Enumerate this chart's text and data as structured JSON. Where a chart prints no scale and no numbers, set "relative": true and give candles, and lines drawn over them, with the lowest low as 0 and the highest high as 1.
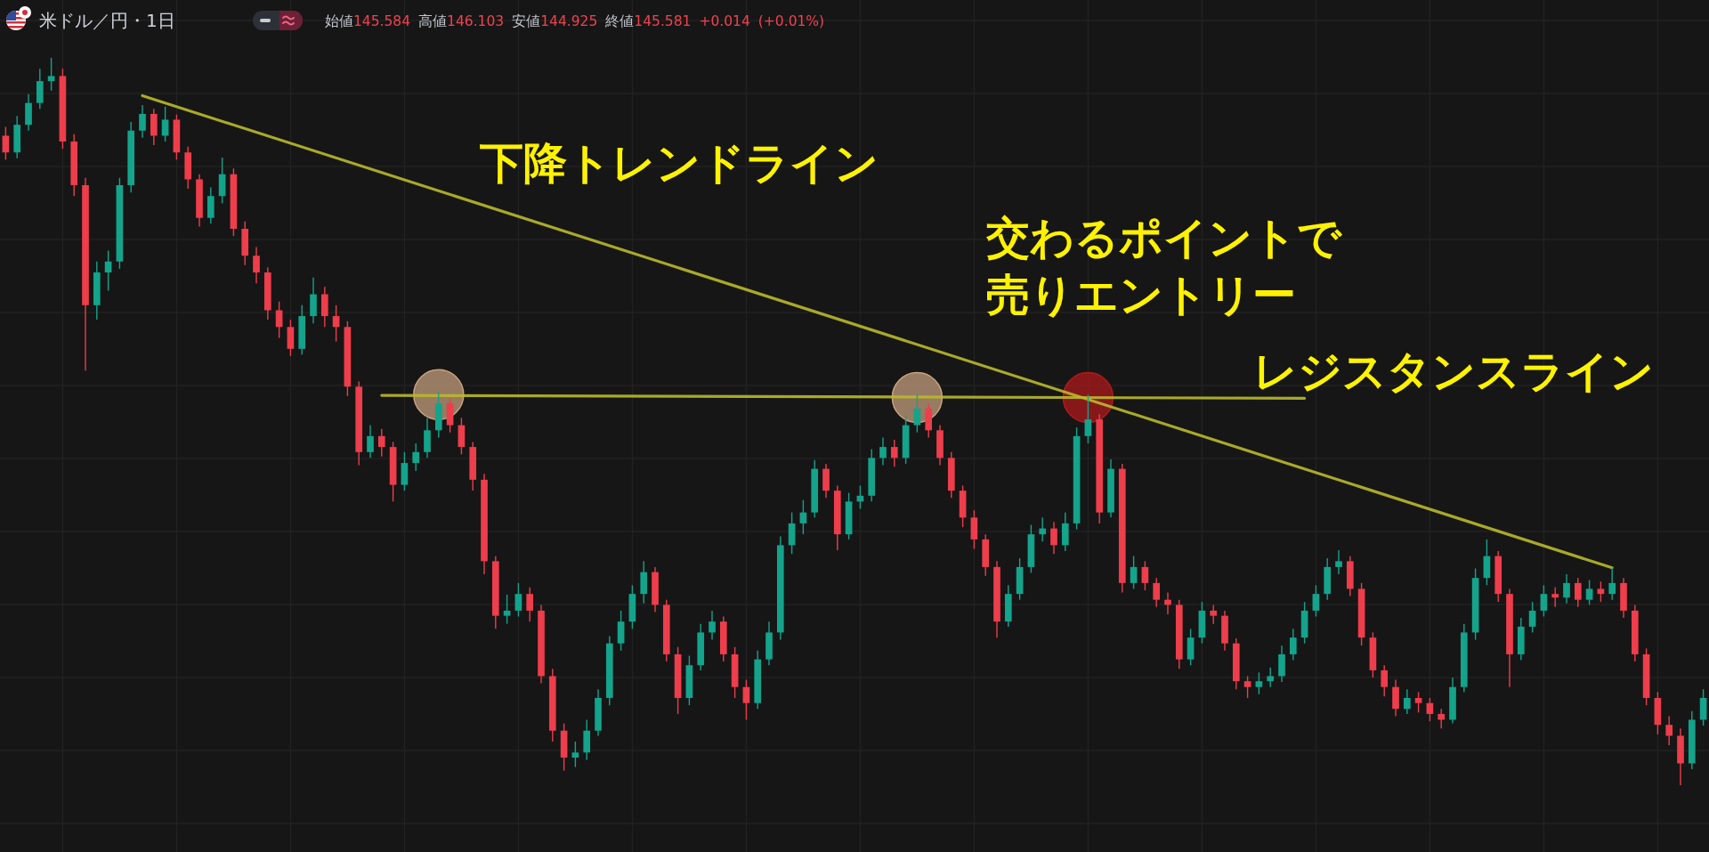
{
  "chart_data": {
    "type": "candlestick",
    "title": "米ドル／円・1日",
    "subtitle": "始値145.584 高値146.103 安値144.925 終値145.581 +0.014 (+0.01%)",
    "relative": true,
    "grid": true,
    "annotations": [
      "下降トレンドライン",
      "交わるポイントで売りエントリー",
      "レジスタンスライン"
    ],
    "categories": [
      null,
      null,
      null,
      null,
      null,
      null,
      null,
      null,
      null,
      null,
      null,
      null,
      null,
      null,
      null,
      null,
      null,
      null,
      null,
      null,
      null,
      null,
      null,
      null,
      null,
      null,
      null,
      null,
      null,
      null,
      null,
      null,
      null,
      null,
      null,
      null,
      null,
      null,
      null,
      null,
      null,
      null,
      null,
      null,
      null,
      null,
      null,
      null,
      null,
      null,
      null,
      null,
      null,
      null,
      null,
      null,
      null,
      null,
      null,
      null,
      null,
      null,
      null,
      null,
      null,
      null,
      null,
      null,
      null,
      null,
      null,
      null,
      null,
      null,
      null,
      null,
      null,
      null,
      null,
      null,
      null,
      null,
      null,
      null,
      null,
      null,
      null,
      null,
      null,
      null,
      null,
      null,
      null,
      null,
      null,
      null,
      null,
      null,
      null,
      null,
      null,
      null,
      null,
      null,
      null,
      null,
      null,
      null,
      null,
      null,
      null,
      null,
      null,
      null,
      null,
      null,
      null,
      null,
      null,
      null,
      null,
      null,
      null,
      null,
      null,
      null,
      null,
      null,
      null,
      null,
      null,
      null,
      null,
      null,
      null,
      null,
      null,
      null,
      null,
      null,
      null,
      null,
      null,
      null,
      null,
      null,
      null,
      null,
      null,
      null
    ],
    "ohlc": [
      [
        0.893,
        0.905,
        0.86,
        0.87
      ],
      [
        0.87,
        0.92,
        0.862,
        0.908
      ],
      [
        0.908,
        0.95,
        0.9,
        0.938
      ],
      [
        0.938,
        0.985,
        0.93,
        0.968
      ],
      [
        0.968,
        1,
        0.955,
        0.975
      ],
      [
        0.975,
        0.985,
        0.875,
        0.885
      ],
      [
        0.885,
        0.895,
        0.81,
        0.825
      ],
      [
        0.825,
        0.835,
        0.57,
        0.66
      ],
      [
        0.66,
        0.72,
        0.64,
        0.705
      ],
      [
        0.705,
        0.735,
        0.68,
        0.72
      ],
      [
        0.72,
        0.835,
        0.71,
        0.825
      ],
      [
        0.825,
        0.912,
        0.815,
        0.9
      ],
      [
        0.9,
        0.935,
        0.89,
        0.923
      ],
      [
        0.923,
        0.93,
        0.88,
        0.893
      ],
      [
        0.893,
        0.933,
        0.885,
        0.915
      ],
      [
        0.915,
        0.922,
        0.86,
        0.87
      ],
      [
        0.87,
        0.878,
        0.82,
        0.833
      ],
      [
        0.833,
        0.84,
        0.768,
        0.78
      ],
      [
        0.78,
        0.822,
        0.772,
        0.81
      ],
      [
        0.81,
        0.863,
        0.8,
        0.84
      ],
      [
        0.84,
        0.848,
        0.755,
        0.765
      ],
      [
        0.765,
        0.775,
        0.715,
        0.728
      ],
      [
        0.728,
        0.74,
        0.69,
        0.705
      ],
      [
        0.705,
        0.712,
        0.64,
        0.653
      ],
      [
        0.653,
        0.665,
        0.615,
        0.63
      ],
      [
        0.63,
        0.64,
        0.59,
        0.6
      ],
      [
        0.6,
        0.66,
        0.592,
        0.645
      ],
      [
        0.645,
        0.698,
        0.635,
        0.675
      ],
      [
        0.675,
        0.685,
        0.63,
        0.645
      ],
      [
        0.645,
        0.66,
        0.61,
        0.63
      ],
      [
        0.63,
        0.638,
        0.535,
        0.548
      ],
      [
        0.548,
        0.555,
        0.44,
        0.458
      ],
      [
        0.458,
        0.495,
        0.45,
        0.48
      ],
      [
        0.48,
        0.49,
        0.452,
        0.465
      ],
      [
        0.465,
        0.472,
        0.39,
        0.413
      ],
      [
        0.413,
        0.458,
        0.405,
        0.443
      ],
      [
        0.443,
        0.47,
        0.432,
        0.458
      ],
      [
        0.458,
        0.505,
        0.45,
        0.488
      ],
      [
        0.488,
        0.54,
        0.478,
        0.525
      ],
      [
        0.525,
        0.532,
        0.485,
        0.495
      ],
      [
        0.495,
        0.505,
        0.455,
        0.465
      ],
      [
        0.465,
        0.472,
        0.405,
        0.42
      ],
      [
        0.42,
        0.428,
        0.29,
        0.308
      ],
      [
        0.308,
        0.315,
        0.215,
        0.233
      ],
      [
        0.233,
        0.262,
        0.222,
        0.24
      ],
      [
        0.24,
        0.278,
        0.232,
        0.263
      ],
      [
        0.263,
        0.272,
        0.225,
        0.24
      ],
      [
        0.24,
        0.248,
        0.14,
        0.15
      ],
      [
        0.15,
        0.16,
        0.06,
        0.075
      ],
      [
        0.075,
        0.085,
        0.02,
        0.038
      ],
      [
        0.038,
        0.06,
        0.025,
        0.045
      ],
      [
        0.045,
        0.09,
        0.035,
        0.075
      ],
      [
        0.075,
        0.132,
        0.068,
        0.12
      ],
      [
        0.12,
        0.205,
        0.11,
        0.195
      ],
      [
        0.195,
        0.24,
        0.185,
        0.225
      ],
      [
        0.225,
        0.275,
        0.215,
        0.263
      ],
      [
        0.263,
        0.308,
        0.25,
        0.293
      ],
      [
        0.293,
        0.3,
        0.238,
        0.248
      ],
      [
        0.248,
        0.255,
        0.17,
        0.18
      ],
      [
        0.18,
        0.19,
        0.098,
        0.12
      ],
      [
        0.12,
        0.178,
        0.11,
        0.165
      ],
      [
        0.165,
        0.222,
        0.158,
        0.21
      ],
      [
        0.21,
        0.24,
        0.2,
        0.225
      ],
      [
        0.225,
        0.232,
        0.17,
        0.18
      ],
      [
        0.18,
        0.19,
        0.12,
        0.135
      ],
      [
        0.135,
        0.145,
        0.09,
        0.113
      ],
      [
        0.113,
        0.185,
        0.105,
        0.173
      ],
      [
        0.173,
        0.225,
        0.165,
        0.21
      ],
      [
        0.21,
        0.342,
        0.2,
        0.33
      ],
      [
        0.33,
        0.375,
        0.318,
        0.36
      ],
      [
        0.36,
        0.392,
        0.345,
        0.375
      ],
      [
        0.375,
        0.447,
        0.368,
        0.435
      ],
      [
        0.435,
        0.442,
        0.395,
        0.405
      ],
      [
        0.405,
        0.412,
        0.323,
        0.345
      ],
      [
        0.345,
        0.402,
        0.338,
        0.39
      ],
      [
        0.39,
        0.412,
        0.38,
        0.398
      ],
      [
        0.398,
        0.462,
        0.39,
        0.45
      ],
      [
        0.45,
        0.478,
        0.44,
        0.465
      ],
      [
        0.465,
        0.475,
        0.438,
        0.45
      ],
      [
        0.45,
        0.508,
        0.442,
        0.495
      ],
      [
        0.495,
        0.537,
        0.485,
        0.518
      ],
      [
        0.518,
        0.525,
        0.478,
        0.488
      ],
      [
        0.488,
        0.495,
        0.44,
        0.45
      ],
      [
        0.45,
        0.458,
        0.395,
        0.405
      ],
      [
        0.405,
        0.412,
        0.355,
        0.368
      ],
      [
        0.368,
        0.378,
        0.325,
        0.338
      ],
      [
        0.338,
        0.345,
        0.288,
        0.3
      ],
      [
        0.3,
        0.308,
        0.203,
        0.225
      ],
      [
        0.225,
        0.275,
        0.218,
        0.263
      ],
      [
        0.263,
        0.312,
        0.255,
        0.3
      ],
      [
        0.3,
        0.358,
        0.292,
        0.345
      ],
      [
        0.345,
        0.368,
        0.335,
        0.353
      ],
      [
        0.353,
        0.362,
        0.318,
        0.33
      ],
      [
        0.33,
        0.375,
        0.322,
        0.36
      ],
      [
        0.36,
        0.492,
        0.352,
        0.48
      ],
      [
        0.48,
        0.537,
        0.47,
        0.503
      ],
      [
        0.503,
        0.51,
        0.36,
        0.375
      ],
      [
        0.375,
        0.448,
        0.368,
        0.435
      ],
      [
        0.435,
        0.442,
        0.265,
        0.278
      ],
      [
        0.278,
        0.315,
        0.27,
        0.3
      ],
      [
        0.3,
        0.308,
        0.268,
        0.278
      ],
      [
        0.278,
        0.285,
        0.245,
        0.255
      ],
      [
        0.255,
        0.265,
        0.235,
        0.248
      ],
      [
        0.248,
        0.255,
        0.16,
        0.173
      ],
      [
        0.173,
        0.215,
        0.165,
        0.203
      ],
      [
        0.203,
        0.252,
        0.195,
        0.24
      ],
      [
        0.24,
        0.248,
        0.222,
        0.233
      ],
      [
        0.233,
        0.24,
        0.185,
        0.195
      ],
      [
        0.195,
        0.202,
        0.132,
        0.143
      ],
      [
        0.143,
        0.15,
        0.12,
        0.135
      ],
      [
        0.135,
        0.155,
        0.125,
        0.143
      ],
      [
        0.143,
        0.162,
        0.135,
        0.15
      ],
      [
        0.15,
        0.192,
        0.142,
        0.18
      ],
      [
        0.18,
        0.215,
        0.172,
        0.203
      ],
      [
        0.203,
        0.252,
        0.195,
        0.24
      ],
      [
        0.24,
        0.275,
        0.232,
        0.263
      ],
      [
        0.263,
        0.312,
        0.255,
        0.3
      ],
      [
        0.3,
        0.323,
        0.29,
        0.308
      ],
      [
        0.308,
        0.315,
        0.26,
        0.27
      ],
      [
        0.27,
        0.278,
        0.192,
        0.203
      ],
      [
        0.203,
        0.21,
        0.148,
        0.158
      ],
      [
        0.158,
        0.165,
        0.122,
        0.135
      ],
      [
        0.135,
        0.145,
        0.095,
        0.105
      ],
      [
        0.105,
        0.132,
        0.098,
        0.12
      ],
      [
        0.12,
        0.128,
        0.1,
        0.113
      ],
      [
        0.113,
        0.12,
        0.088,
        0.098
      ],
      [
        0.098,
        0.105,
        0.078,
        0.09
      ],
      [
        0.09,
        0.148,
        0.085,
        0.135
      ],
      [
        0.135,
        0.222,
        0.128,
        0.21
      ],
      [
        0.21,
        0.298,
        0.2,
        0.285
      ],
      [
        0.285,
        0.338,
        0.275,
        0.315
      ],
      [
        0.315,
        0.322,
        0.252,
        0.263
      ],
      [
        0.263,
        0.27,
        0.135,
        0.18
      ],
      [
        0.18,
        0.23,
        0.172,
        0.218
      ],
      [
        0.218,
        0.252,
        0.21,
        0.24
      ],
      [
        0.24,
        0.275,
        0.232,
        0.263
      ],
      [
        0.263,
        0.272,
        0.245,
        0.258
      ],
      [
        0.258,
        0.29,
        0.25,
        0.278
      ],
      [
        0.278,
        0.285,
        0.245,
        0.255
      ],
      [
        0.255,
        0.282,
        0.248,
        0.27
      ],
      [
        0.27,
        0.28,
        0.252,
        0.263
      ],
      [
        0.263,
        0.299,
        0.255,
        0.278
      ],
      [
        0.278,
        0.285,
        0.23,
        0.24
      ],
      [
        0.24,
        0.248,
        0.17,
        0.18
      ],
      [
        0.18,
        0.188,
        0.11,
        0.12
      ],
      [
        0.12,
        0.128,
        0.07,
        0.083
      ],
      [
        0.083,
        0.095,
        0.055,
        0.068
      ],
      [
        0.068,
        0.078,
        0,
        0.03
      ],
      [
        0.03,
        0.102,
        0.022,
        0.09
      ],
      [
        0.09,
        0.132,
        0.082,
        0.12
      ]
    ],
    "series": [
      {
        "type": "line",
        "color": "#b9b92b",
        "values": [
          null,
          null,
          null,
          null,
          null,
          null,
          null,
          null,
          null,
          null,
          null,
          null,
          0.948,
          null,
          null,
          null,
          null,
          null,
          null,
          null,
          null,
          null,
          null,
          null,
          null,
          null,
          null,
          null,
          null,
          null,
          null,
          null,
          null,
          null,
          null,
          null,
          null,
          null,
          null,
          null,
          null,
          null,
          null,
          null,
          null,
          null,
          null,
          null,
          null,
          null,
          null,
          null,
          null,
          null,
          null,
          null,
          null,
          null,
          null,
          null,
          null,
          null,
          null,
          null,
          null,
          null,
          null,
          null,
          null,
          null,
          null,
          null,
          null,
          null,
          null,
          null,
          null,
          null,
          null,
          null,
          null,
          null,
          null,
          null,
          null,
          null,
          null,
          null,
          null,
          null,
          null,
          null,
          null,
          null,
          null,
          null,
          null,
          null,
          null,
          null,
          null,
          null,
          null,
          null,
          null,
          null,
          null,
          null,
          null,
          null,
          null,
          null,
          null,
          null,
          null,
          null,
          null,
          null,
          null,
          null,
          null,
          null,
          null,
          null,
          null,
          null,
          null,
          null,
          null,
          null,
          null,
          null,
          null,
          null,
          null,
          null,
          null,
          null,
          null,
          null,
          null,
          0.299,
          null,
          null,
          null,
          null,
          null,
          null,
          null,
          null
        ]
      },
      {
        "type": "line",
        "color": "#b9b92b",
        "values": [
          null,
          null,
          null,
          null,
          null,
          null,
          null,
          null,
          null,
          null,
          null,
          null,
          null,
          null,
          null,
          null,
          null,
          null,
          null,
          null,
          null,
          null,
          null,
          null,
          null,
          null,
          null,
          null,
          null,
          null,
          null,
          null,
          null,
          0.536,
          null,
          null,
          null,
          null,
          null,
          null,
          null,
          null,
          null,
          null,
          null,
          null,
          null,
          null,
          null,
          null,
          null,
          null,
          null,
          null,
          null,
          null,
          null,
          null,
          null,
          null,
          null,
          null,
          null,
          null,
          null,
          null,
          null,
          null,
          null,
          null,
          null,
          null,
          null,
          null,
          null,
          null,
          null,
          null,
          null,
          null,
          null,
          null,
          null,
          null,
          null,
          null,
          null,
          null,
          null,
          null,
          null,
          null,
          null,
          null,
          null,
          null,
          null,
          null,
          null,
          null,
          null,
          null,
          null,
          null,
          null,
          null,
          null,
          null,
          null,
          null,
          null,
          null,
          null,
          null,
          0.532,
          null,
          null,
          null,
          null,
          null,
          null,
          null,
          null,
          null,
          null,
          null,
          null,
          null,
          null,
          null,
          null,
          null,
          null,
          null,
          null,
          null,
          null,
          null,
          null,
          null,
          null,
          null,
          null,
          null,
          null,
          null,
          null,
          null,
          null,
          null
        ]
      },
      {
        "type": "scatter",
        "marker": "circle",
        "color": "#c9a27f",
        "values": [
          null,
          null,
          null,
          null,
          null,
          null,
          null,
          null,
          null,
          null,
          null,
          null,
          null,
          null,
          null,
          null,
          null,
          null,
          null,
          null,
          null,
          null,
          null,
          null,
          null,
          null,
          null,
          null,
          null,
          null,
          null,
          null,
          null,
          null,
          null,
          null,
          null,
          null,
          0.537,
          null,
          null,
          null,
          null,
          null,
          null,
          null,
          null,
          null,
          null,
          null,
          null,
          null,
          null,
          null,
          null,
          null,
          null,
          null,
          null,
          null,
          null,
          null,
          null,
          null,
          null,
          null,
          null,
          null,
          null,
          null,
          null,
          null,
          null,
          null,
          null,
          null,
          null,
          null,
          null,
          null,
          0.533,
          null,
          null,
          null,
          null,
          null,
          null,
          null,
          null,
          null,
          null,
          null,
          null,
          null,
          null,
          null,
          null,
          null,
          null,
          null,
          null,
          null,
          null,
          null,
          null,
          null,
          null,
          null,
          null,
          null,
          null,
          null,
          null,
          null,
          null,
          null,
          null,
          null,
          null,
          null,
          null,
          null,
          null,
          null,
          null,
          null,
          null,
          null,
          null,
          null,
          null,
          null,
          null,
          null,
          null,
          null,
          null,
          null,
          null,
          null,
          null,
          null,
          null,
          null,
          null,
          null,
          null,
          null,
          null,
          null
        ]
      },
      {
        "type": "scatter",
        "marker": "circle",
        "color": "#b3191c",
        "values": [
          null,
          null,
          null,
          null,
          null,
          null,
          null,
          null,
          null,
          null,
          null,
          null,
          null,
          null,
          null,
          null,
          null,
          null,
          null,
          null,
          null,
          null,
          null,
          null,
          null,
          null,
          null,
          null,
          null,
          null,
          null,
          null,
          null,
          null,
          null,
          null,
          null,
          null,
          null,
          null,
          null,
          null,
          null,
          null,
          null,
          null,
          null,
          null,
          null,
          null,
          null,
          null,
          null,
          null,
          null,
          null,
          null,
          null,
          null,
          null,
          null,
          null,
          null,
          null,
          null,
          null,
          null,
          null,
          null,
          null,
          null,
          null,
          null,
          null,
          null,
          null,
          null,
          null,
          null,
          null,
          null,
          null,
          null,
          null,
          null,
          null,
          null,
          null,
          null,
          null,
          null,
          null,
          null,
          null,
          null,
          0.533,
          null,
          null,
          null,
          null,
          null,
          null,
          null,
          null,
          null,
          null,
          null,
          null,
          null,
          null,
          null,
          null,
          null,
          null,
          null,
          null,
          null,
          null,
          null,
          null,
          null,
          null,
          null,
          null,
          null,
          null,
          null,
          null,
          null,
          null,
          null,
          null,
          null,
          null,
          null,
          null,
          null,
          null,
          null,
          null,
          null,
          null,
          null,
          null,
          null,
          null,
          null,
          null,
          null,
          null
        ]
      }
    ]
  }
}
